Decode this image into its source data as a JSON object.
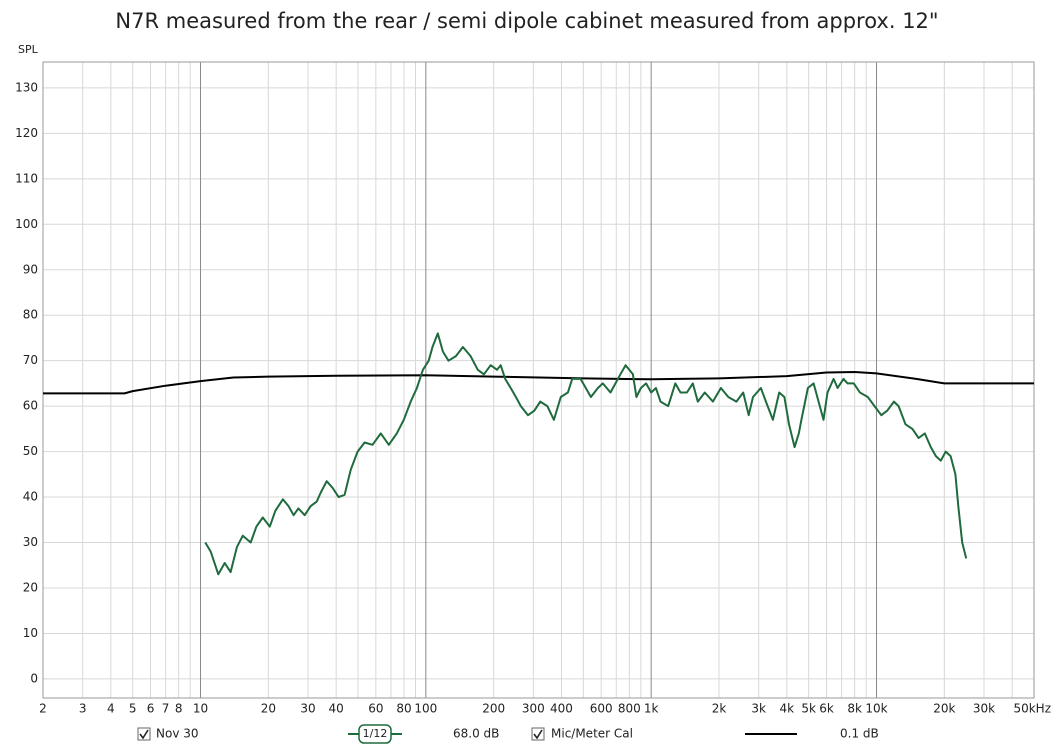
{
  "chart_data": {
    "type": "line",
    "title": "N7R measured from the rear / semi dipole cabinet measured from approx. 12\"",
    "y_label": "SPL",
    "log_x": true,
    "grid": true,
    "xlim": [
      2,
      50000
    ],
    "ylim": [
      -4.2,
      135.7
    ],
    "yticks": [
      0,
      10,
      20,
      30,
      40,
      50,
      60,
      70,
      80,
      90,
      100,
      110,
      120,
      130
    ],
    "xticks": [
      2,
      3,
      4,
      5,
      6,
      7,
      8,
      10,
      20,
      30,
      40,
      60,
      80,
      100,
      200,
      300,
      400,
      600,
      800,
      {
        "value": 1000,
        "label": "1k"
      },
      {
        "value": 2000,
        "label": "2k"
      },
      {
        "value": 3000,
        "label": "3k"
      },
      {
        "value": 4000,
        "label": "4k"
      },
      {
        "value": 5000,
        "label": "5k"
      },
      {
        "value": 6000,
        "label": "6k"
      },
      {
        "value": 8000,
        "label": "8k"
      },
      {
        "value": 10000,
        "label": "10k"
      },
      {
        "value": 20000,
        "label": "20k"
      },
      {
        "value": 30000,
        "label": "30k"
      },
      {
        "value": 50000,
        "label": "50kHz"
      }
    ],
    "xminor": [
      9,
      50,
      70,
      90,
      500,
      700,
      900,
      7000,
      9000,
      40000
    ],
    "series": [
      {
        "name": "Nov 30",
        "color": "#1f6b3d",
        "smoothing": "1/12",
        "level": "68.0 dB",
        "x": [
          10.5,
          11.1,
          12.0,
          12.8,
          13.6,
          14.5,
          15.4,
          16.7,
          17.7,
          18.9,
          20.3,
          21.5,
          23.2,
          24.6,
          25.9,
          27.2,
          29.0,
          30.8,
          32.8,
          34.2,
          36.3,
          38.6,
          41.0,
          43.6,
          46.4,
          49.8,
          53.5,
          58.0,
          63.1,
          68.5,
          74.3,
          79.8,
          85.7,
          91.3,
          97.0,
          103,
          107,
          113,
          119,
          126,
          136,
          146,
          158,
          170,
          181,
          194,
          207,
          215,
          225,
          238,
          251,
          264,
          284,
          303,
          322,
          346,
          370,
          397,
          427,
          446,
          486,
          540,
          580,
          610,
          660,
          730,
          770,
          830,
          860,
          900,
          950,
          1000,
          1050,
          1100,
          1190,
          1280,
          1350,
          1440,
          1530,
          1610,
          1730,
          1880,
          2040,
          2200,
          2390,
          2560,
          2710,
          2830,
          3070,
          3230,
          3470,
          3700,
          3900,
          4090,
          4330,
          4520,
          4640,
          4960,
          5260,
          5600,
          5820,
          6060,
          6450,
          6720,
          7140,
          7440,
          7930,
          8440,
          9150,
          9800,
          10500,
          11150,
          11950,
          12540,
          13450,
          14430,
          15380,
          16380,
          17420,
          18340,
          19290,
          20280,
          21320,
          22400,
          23060,
          24000,
          25000
        ],
        "values": [
          30,
          28,
          23,
          25.5,
          23.5,
          29,
          31.5,
          30,
          33.5,
          35.5,
          33.5,
          37,
          39.5,
          38,
          36,
          37.5,
          36,
          38,
          39,
          41,
          43.5,
          42,
          40,
          40.5,
          46,
          50,
          52,
          51.5,
          54,
          51.5,
          54,
          57,
          61,
          64,
          68,
          70,
          73,
          76,
          72,
          70,
          71,
          73,
          71,
          68,
          67,
          69,
          68,
          69,
          66,
          64,
          62,
          60,
          58,
          59,
          61,
          60,
          57,
          62,
          63,
          66,
          66,
          62,
          64,
          65,
          63,
          67,
          69,
          67,
          62,
          64,
          65,
          63,
          64,
          61,
          60,
          65,
          63,
          63,
          65,
          61,
          63,
          61,
          64,
          62,
          61,
          63,
          58,
          62,
          64,
          61,
          57,
          63,
          62,
          56,
          51,
          54,
          57,
          64,
          65,
          60,
          57,
          63,
          66,
          64,
          66,
          65,
          65,
          63,
          62,
          60,
          58,
          59,
          61,
          60,
          56,
          55,
          53,
          54,
          51,
          49,
          48,
          50,
          49,
          45,
          38,
          30,
          26.5
        ]
      },
      {
        "name": "Mic/Meter Cal",
        "color": "#000000",
        "level": "0.1 dB",
        "x": [
          2,
          4.6,
          5,
          7,
          10,
          14,
          20,
          40,
          100,
          200,
          500,
          1000,
          2000,
          4000,
          6000,
          8000,
          10000,
          15000,
          20000,
          50000
        ],
        "values": [
          62.8,
          62.8,
          63.3,
          64.5,
          65.5,
          66.3,
          66.5,
          66.7,
          66.8,
          66.5,
          66.1,
          65.9,
          66.1,
          66.6,
          67.4,
          67.5,
          67.2,
          66,
          65,
          65
        ]
      }
    ]
  }
}
